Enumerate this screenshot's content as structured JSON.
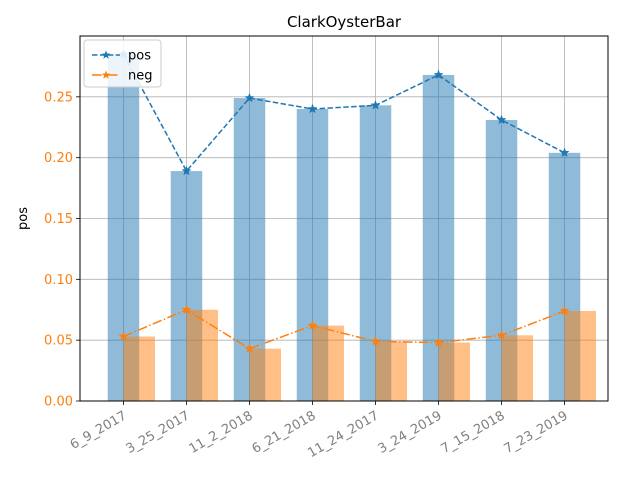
{
  "chart_data": {
    "type": "bar",
    "title": "ClarkOysterBar",
    "xlabel": "",
    "ylabel": "pos",
    "categories": [
      "6_9_2017",
      "3_25_2017",
      "11_2_2018",
      "6_21_2018",
      "11_24_2017",
      "3_24_2019",
      "7_15_2018",
      "7_23_2019"
    ],
    "ylim": [
      0,
      0.3
    ],
    "yticks": [
      "0.00",
      "0.05",
      "0.10",
      "0.15",
      "0.20",
      "0.25"
    ],
    "grid": true,
    "legend_position": "top-left",
    "series": [
      {
        "name": "pos",
        "values": [
          0.285,
          0.189,
          0.249,
          0.24,
          0.243,
          0.268,
          0.231,
          0.204
        ],
        "bar_color": "#1f77b4",
        "line_color": "#1f77b4",
        "line_style": "dashed",
        "marker": "star"
      },
      {
        "name": "neg",
        "values": [
          0.053,
          0.075,
          0.043,
          0.062,
          0.049,
          0.048,
          0.054,
          0.074
        ],
        "bar_color": "#ff7f0e",
        "line_color": "#ff7f0e",
        "line_style": "dashdot",
        "marker": "star"
      }
    ],
    "x_tick_color": "#808080",
    "y_tick_color": "#ff7f0e"
  }
}
